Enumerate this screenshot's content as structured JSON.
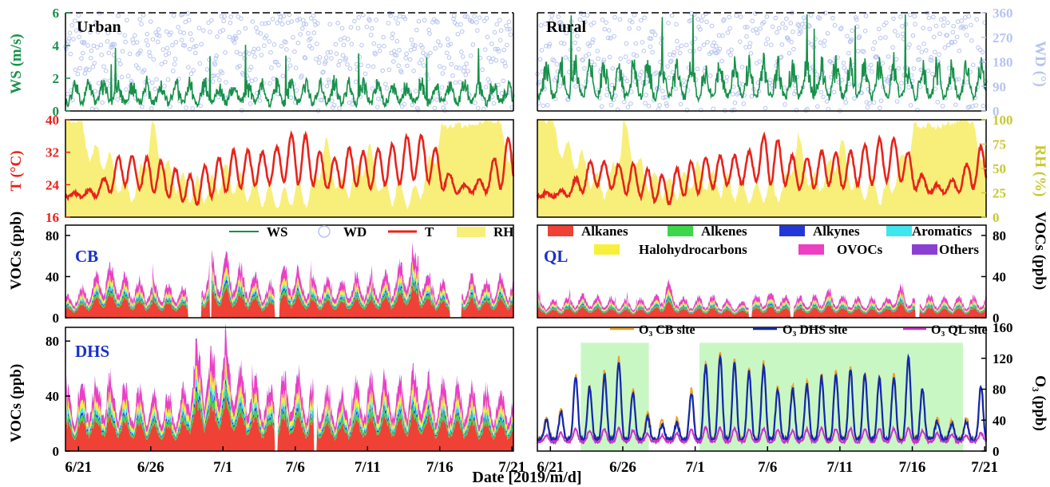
{
  "figure": {
    "xlabel": "Date [2019/m/d]",
    "xticks": [
      "6/21",
      "6/26",
      "7/1",
      "7/6",
      "7/11",
      "7/16",
      "7/21"
    ],
    "x_start_day": "2019-06-20",
    "x_end_day": "2019-07-21"
  },
  "colors": {
    "ws": "#17914a",
    "wd": "#b8c4f0",
    "t": "#e8231b",
    "rh": "#f7ef7a",
    "rh_axis": "#c8c832",
    "site_label": "#1a31c8",
    "alkanes": "#ef4136",
    "alkenes": "#3ed64a",
    "alkynes": "#2337d9",
    "aromatics": "#3fe6ee",
    "halohydrocarbons": "#f6f03a",
    "ovocs": "#ee3ec4",
    "others": "#8a3fd0",
    "o3_cb": "#e8a52a",
    "o3_dhs": "#1028b0",
    "o3_ql": "#cc33cc",
    "highlight": "#c9f7c4"
  },
  "panels": {
    "met_urban_label": "Urban",
    "met_rural_label": "Rural",
    "ws_ylabel": "WS (m/s)",
    "wd_ylabel": "WD (°)",
    "t_ylabel": "T (°C)",
    "rh_ylabel": "RH (%)",
    "voc_ylabel": "VOCs (ppb)",
    "o3_ylabel": "O₃ (ppb)",
    "cb_label": "CB",
    "ql_label": "QL",
    "dhs_label": "DHS"
  },
  "legend_met": {
    "ws": "WS",
    "wd": "WD",
    "t": "T",
    "rh": "RH"
  },
  "legend_voc": {
    "alkanes": "Alkanes",
    "alkenes": "Alkenes",
    "alkynes": "Alkynes",
    "aromatics": "Aromatics",
    "halohydrocarbons": "Halohydrocarbons",
    "ovocs": "OVOCs",
    "others": "Others"
  },
  "legend_o3": {
    "cb": "O₃ CB site",
    "dhs": "O₃ DHS site",
    "ql": "O₃ QL site"
  },
  "chart_data": [
    {
      "type": "line",
      "panel": "urban-wind",
      "x": "hourly, 2019-06-20 to 2019-07-21",
      "series": [
        {
          "name": "WS",
          "axis": "left",
          "unit": "m/s",
          "typical_range": [
            0.2,
            2.8
          ]
        },
        {
          "name": "WD",
          "axis": "right",
          "unit": "°",
          "style": "scatter",
          "range": [
            0,
            360
          ]
        }
      ],
      "ylim_left": [
        0,
        6
      ],
      "yticks_left": [
        0,
        2,
        4,
        6
      ],
      "ylim_right": [
        0,
        360
      ],
      "yticks_right": [
        0,
        90,
        180,
        270,
        360
      ]
    },
    {
      "type": "line",
      "panel": "rural-wind",
      "x": "hourly, 2019-06-20 to 2019-07-21",
      "series": [
        {
          "name": "WS",
          "axis": "left",
          "unit": "m/s",
          "typical_range": [
            0.4,
            5.9
          ]
        },
        {
          "name": "WD",
          "axis": "right",
          "unit": "°",
          "style": "scatter",
          "range": [
            0,
            360
          ]
        }
      ],
      "ylim_left": [
        0,
        6
      ],
      "yticks_left": [
        0,
        2,
        4,
        6
      ],
      "ylim_right": [
        0,
        360
      ],
      "yticks_right": [
        0,
        90,
        180,
        270,
        360
      ]
    },
    {
      "type": "line",
      "panel": "urban-met",
      "x_days": [
        0,
        1,
        2,
        3,
        4,
        5,
        6,
        7,
        8,
        9,
        10,
        11,
        12,
        13,
        14,
        15,
        16,
        17,
        18,
        19,
        20,
        21,
        22,
        23,
        24,
        25,
        26,
        27,
        28,
        29,
        30,
        31
      ],
      "series": [
        {
          "name": "T",
          "axis": "left",
          "unit": "°C",
          "daily_min": [
            21,
            21,
            21,
            22,
            24,
            23,
            22,
            21,
            20,
            19,
            21,
            22,
            23,
            24,
            24,
            25,
            24,
            24,
            23,
            23,
            24,
            23,
            24,
            24,
            25,
            25,
            23,
            22,
            22,
            22,
            23,
            24
          ],
          "daily_max": [
            22,
            22,
            23,
            27,
            33,
            30,
            31,
            29,
            27,
            26,
            30,
            31,
            33,
            32,
            32,
            34,
            38,
            35,
            30,
            31,
            34,
            31,
            34,
            34,
            37,
            36,
            31,
            24,
            24,
            26,
            33,
            37
          ]
        },
        {
          "name": "RH",
          "axis": "right",
          "unit": "%",
          "style": "area",
          "daily_mean": [
            100,
            100,
            75,
            70,
            40,
            42,
            100,
            60,
            45,
            40,
            40,
            55,
            45,
            40,
            35,
            30,
            40,
            35,
            85,
            40,
            50,
            80,
            35,
            40,
            30,
            55,
            95,
            95,
            95,
            100,
            100,
            70
          ]
        }
      ],
      "ylim_left": [
        16,
        40
      ],
      "yticks_left": [
        16,
        24,
        32,
        40
      ],
      "ylim_right": [
        0,
        100
      ],
      "yticks_right": [
        0,
        25,
        50,
        75,
        100
      ]
    },
    {
      "type": "line",
      "panel": "rural-met",
      "x_days": [
        0,
        1,
        2,
        3,
        4,
        5,
        6,
        7,
        8,
        9,
        10,
        11,
        12,
        13,
        14,
        15,
        16,
        17,
        18,
        19,
        20,
        21,
        22,
        23,
        24,
        25,
        26,
        27,
        28,
        29,
        30,
        31
      ],
      "series": [
        {
          "name": "T",
          "axis": "left",
          "unit": "°C",
          "daily_min": [
            21,
            21,
            21,
            22,
            24,
            23,
            22,
            21,
            20,
            19,
            21,
            22,
            23,
            24,
            24,
            25,
            24,
            24,
            23,
            23,
            24,
            23,
            24,
            24,
            25,
            25,
            23,
            22,
            22,
            22,
            23,
            24
          ],
          "daily_max": [
            22,
            22,
            23,
            27,
            31,
            29,
            29,
            29,
            27,
            26,
            29,
            30,
            31,
            31,
            31,
            33,
            38,
            33,
            30,
            31,
            33,
            31,
            33,
            34,
            36,
            35,
            30,
            24,
            24,
            26,
            31,
            35
          ]
        },
        {
          "name": "RH",
          "axis": "right",
          "unit": "%",
          "style": "area",
          "daily_mean": [
            100,
            100,
            78,
            72,
            45,
            45,
            100,
            62,
            48,
            42,
            45,
            58,
            48,
            45,
            40,
            35,
            42,
            38,
            88,
            45,
            55,
            85,
            40,
            45,
            35,
            60,
            95,
            95,
            95,
            100,
            100,
            75
          ]
        }
      ],
      "ylim_left": [
        16,
        40
      ],
      "yticks_left": [
        16,
        24,
        32,
        40
      ],
      "ylim_right": [
        0,
        100
      ],
      "yticks_right": [
        0,
        25,
        50,
        75,
        100
      ]
    },
    {
      "type": "area",
      "panel": "voc-cb",
      "stacked": true,
      "categories": [
        "Alkanes",
        "Alkenes",
        "Alkynes",
        "Aromatics",
        "Halohydrocarbons",
        "OVOCs",
        "Others"
      ],
      "x_days": [
        0,
        1,
        2,
        3,
        4,
        5,
        6,
        7,
        8,
        9,
        10,
        11,
        12,
        13,
        14,
        15,
        16,
        17,
        18,
        19,
        20,
        21,
        22,
        23,
        24,
        25,
        26,
        27,
        28,
        29,
        30,
        31
      ],
      "total_daily_max": [
        22,
        28,
        40,
        55,
        42,
        38,
        36,
        32,
        30,
        32,
        60,
        62,
        50,
        45,
        30,
        55,
        48,
        40,
        38,
        36,
        42,
        40,
        45,
        48,
        70,
        42,
        35,
        36,
        40,
        38,
        42,
        40
      ],
      "gaps_days": [
        [
          8.5,
          9.4
        ],
        [
          10.0,
          10.1
        ],
        [
          14.5,
          14.8
        ],
        [
          26.6,
          27.4
        ]
      ],
      "ylim": [
        0,
        90
      ],
      "yticks": [
        0,
        40,
        80
      ]
    },
    {
      "type": "area",
      "panel": "voc-ql",
      "stacked": true,
      "categories": [
        "Alkanes",
        "Alkenes",
        "Alkynes",
        "Aromatics",
        "Halohydrocarbons",
        "OVOCs",
        "Others"
      ],
      "x_days": [
        0,
        1,
        2,
        3,
        4,
        5,
        6,
        7,
        8,
        9,
        10,
        11,
        12,
        13,
        14,
        15,
        16,
        17,
        18,
        19,
        20,
        21,
        22,
        23,
        24,
        25,
        26,
        27,
        28,
        29,
        30,
        31
      ],
      "total_daily_max": [
        18,
        18,
        20,
        24,
        22,
        20,
        18,
        18,
        20,
        36,
        20,
        20,
        22,
        18,
        16,
        22,
        25,
        22,
        22,
        20,
        28,
        22,
        20,
        20,
        18,
        32,
        20,
        22,
        20,
        20,
        20,
        22
      ],
      "gaps_days": [
        [
          14.6,
          14.8
        ],
        [
          17.5,
          17.7
        ],
        [
          26.1,
          26.4
        ]
      ],
      "ylim": [
        0,
        90
      ],
      "yticks": [
        0,
        40,
        80
      ]
    },
    {
      "type": "area",
      "panel": "voc-dhs",
      "stacked": true,
      "categories": [
        "Alkanes",
        "Alkenes",
        "Alkynes",
        "Aromatics",
        "Halohydrocarbons",
        "OVOCs",
        "Others"
      ],
      "x_days": [
        0,
        1,
        2,
        3,
        4,
        5,
        6,
        7,
        8,
        9,
        10,
        11,
        12,
        13,
        14,
        15,
        16,
        17,
        18,
        19,
        20,
        21,
        22,
        23,
        24,
        25,
        26,
        27,
        28,
        29,
        30,
        31
      ],
      "total_daily_max": [
        40,
        50,
        52,
        55,
        48,
        45,
        45,
        42,
        40,
        80,
        72,
        85,
        62,
        55,
        48,
        55,
        58,
        48,
        45,
        42,
        50,
        52,
        55,
        52,
        60,
        55,
        50,
        52,
        48,
        45,
        45,
        45
      ],
      "gaps_days": [
        [
          14.5,
          14.7
        ],
        [
          17.2,
          17.4
        ]
      ],
      "ylim": [
        0,
        90
      ],
      "yticks": [
        0,
        40,
        80
      ]
    },
    {
      "type": "line",
      "panel": "o3",
      "x_days": [
        0,
        1,
        2,
        3,
        4,
        5,
        6,
        7,
        8,
        9,
        10,
        11,
        12,
        13,
        14,
        15,
        16,
        17,
        18,
        19,
        20,
        21,
        22,
        23,
        24,
        25,
        26,
        27,
        28,
        29,
        30,
        31
      ],
      "series": [
        {
          "name": "O3 CB site",
          "daily_max": [
            45,
            45,
            60,
            120,
            65,
            125,
            120,
            55,
            45,
            35,
            45,
            100,
            125,
            130,
            110,
            105,
            120,
            60,
            100,
            85,
            110,
            100,
            115,
            95,
            100,
            100,
            130,
            50,
            40,
            40,
            45,
            100
          ]
        },
        {
          "name": "O3 DHS site",
          "daily_max": [
            40,
            40,
            55,
            120,
            60,
            120,
            115,
            50,
            40,
            30,
            40,
            95,
            120,
            125,
            105,
            100,
            115,
            55,
            95,
            80,
            105,
            95,
            110,
            90,
            95,
            95,
            135,
            45,
            35,
            35,
            40,
            110
          ]
        },
        {
          "name": "O3 QL site",
          "daily_max": [
            20,
            20,
            25,
            30,
            25,
            30,
            30,
            25,
            20,
            20,
            25,
            30,
            30,
            30,
            28,
            28,
            30,
            25,
            28,
            28,
            30,
            28,
            30,
            28,
            30,
            28,
            30,
            25,
            22,
            22,
            20,
            25
          ]
        }
      ],
      "highlight_days": [
        [
          3.0,
          7.7
        ],
        [
          11.2,
          29.4
        ]
      ],
      "ylim": [
        0,
        160
      ],
      "yticks": [
        0,
        40,
        80,
        120,
        160
      ]
    }
  ]
}
